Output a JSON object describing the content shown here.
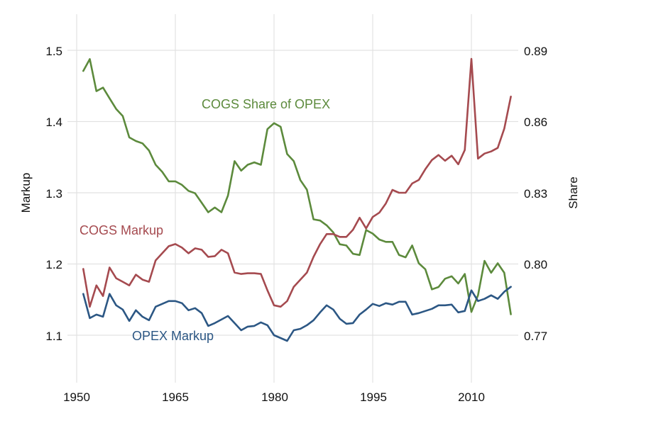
{
  "chart_data": {
    "type": "line",
    "title": "",
    "xlabel": "",
    "ylabel_left": "Markup",
    "ylabel_right": "Share",
    "grid": true,
    "x_ticks": [
      "1950",
      "1965",
      "1980",
      "1995",
      "2010"
    ],
    "y_left_ticks": [
      "1.1",
      "1.2",
      "1.3",
      "1.4",
      "1.5"
    ],
    "y_right_ticks": [
      "0.77",
      "0.80",
      "0.83",
      "0.86",
      "0.89"
    ],
    "y_left_lim": [
      1.04,
      1.55
    ],
    "x_lim": [
      1948,
      2017
    ],
    "x": [
      1951,
      1952,
      1953,
      1954,
      1955,
      1956,
      1957,
      1958,
      1959,
      1960,
      1961,
      1962,
      1963,
      1964,
      1965,
      1966,
      1967,
      1968,
      1969,
      1970,
      1971,
      1972,
      1973,
      1974,
      1975,
      1976,
      1977,
      1978,
      1979,
      1980,
      1981,
      1982,
      1983,
      1984,
      1985,
      1986,
      1987,
      1988,
      1989,
      1990,
      1991,
      1992,
      1993,
      1994,
      1995,
      1996,
      1997,
      1998,
      1999,
      2000,
      2001,
      2002,
      2003,
      2004,
      2005,
      2006,
      2007,
      2008,
      2009,
      2010,
      2011,
      2012,
      2013,
      2014,
      2015,
      2016
    ],
    "series": [
      {
        "name": "COGS Markup",
        "color": "#a54a4f",
        "axis": "left",
        "values": [
          1.193,
          1.14,
          1.17,
          1.155,
          1.195,
          1.18,
          1.175,
          1.17,
          1.185,
          1.178,
          1.175,
          1.205,
          1.215,
          1.225,
          1.228,
          1.223,
          1.215,
          1.222,
          1.22,
          1.21,
          1.211,
          1.22,
          1.215,
          1.188,
          1.186,
          1.187,
          1.187,
          1.186,
          1.163,
          1.142,
          1.14,
          1.148,
          1.168,
          1.178,
          1.188,
          1.21,
          1.228,
          1.242,
          1.242,
          1.238,
          1.238,
          1.248,
          1.265,
          1.25,
          1.266,
          1.272,
          1.285,
          1.304,
          1.3,
          1.3,
          1.313,
          1.318,
          1.333,
          1.346,
          1.353,
          1.345,
          1.352,
          1.34,
          1.36,
          1.488,
          1.348,
          1.355,
          1.358,
          1.363,
          1.39,
          1.435
        ]
      },
      {
        "name": "OPEX Markup",
        "color": "#2c5784",
        "axis": "left",
        "values": [
          1.158,
          1.124,
          1.129,
          1.126,
          1.158,
          1.142,
          1.136,
          1.12,
          1.135,
          1.126,
          1.121,
          1.14,
          1.144,
          1.148,
          1.148,
          1.145,
          1.135,
          1.138,
          1.131,
          1.113,
          1.117,
          1.122,
          1.127,
          1.117,
          1.107,
          1.112,
          1.113,
          1.118,
          1.114,
          1.1,
          1.096,
          1.092,
          1.107,
          1.109,
          1.114,
          1.121,
          1.132,
          1.142,
          1.136,
          1.123,
          1.116,
          1.117,
          1.129,
          1.136,
          1.144,
          1.141,
          1.145,
          1.143,
          1.147,
          1.147,
          1.129,
          1.131,
          1.134,
          1.137,
          1.142,
          1.142,
          1.143,
          1.132,
          1.134,
          1.163,
          1.148,
          1.151,
          1.156,
          1.151,
          1.161,
          1.168
        ]
      },
      {
        "name": "COGS Share of OPEX",
        "color": "#5c8a3c",
        "axis": "right",
        "values": [
          0.8813,
          0.8863,
          0.8728,
          0.8743,
          0.8698,
          0.8653,
          0.8623,
          0.8533,
          0.8518,
          0.8508,
          0.8478,
          0.8418,
          0.8388,
          0.8348,
          0.8348,
          0.8333,
          0.8308,
          0.8298,
          0.8258,
          0.8218,
          0.8238,
          0.8218,
          0.8288,
          0.8433,
          0.8393,
          0.8418,
          0.8428,
          0.8418,
          0.8568,
          0.8593,
          0.8578,
          0.8463,
          0.8433,
          0.8353,
          0.8313,
          0.8188,
          0.8183,
          0.8163,
          0.8133,
          0.8083,
          0.8078,
          0.8043,
          0.8038,
          0.8143,
          0.8128,
          0.8103,
          0.8093,
          0.8093,
          0.8038,
          0.8028,
          0.8078,
          0.8003,
          0.7978,
          0.7893,
          0.7903,
          0.7938,
          0.7948,
          0.7918,
          0.7958,
          0.7798,
          0.7868,
          0.8013,
          0.7963,
          0.8003,
          0.7963,
          0.7788
        ]
      }
    ]
  }
}
